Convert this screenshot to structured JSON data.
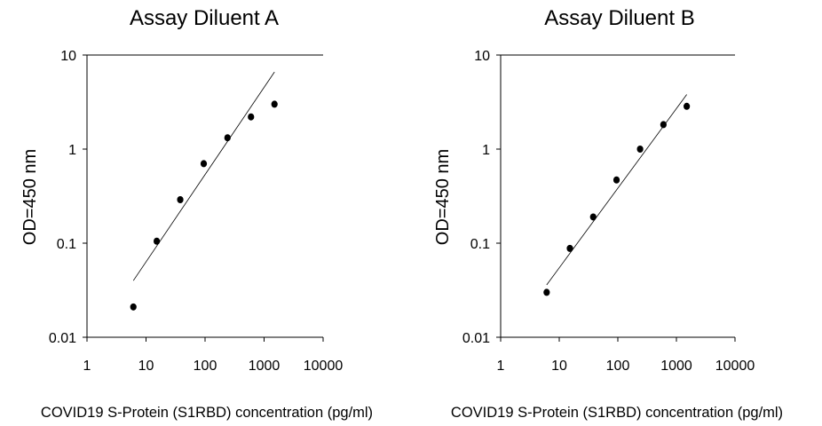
{
  "chart_data": [
    {
      "type": "scatter",
      "title": "Assay Diluent A",
      "xlabel": "COVID19 S-Protein (S1RBD) concentration (pg/ml)",
      "ylabel": "OD=450 nm",
      "xscale": "log",
      "yscale": "log",
      "xlim": [
        1,
        10000
      ],
      "ylim": [
        0.01,
        10
      ],
      "xticks": [
        "1",
        "10",
        "100",
        "1000",
        "10000"
      ],
      "yticks": [
        "0.01",
        "0.1",
        "1",
        "10"
      ],
      "grid": false,
      "series": [
        {
          "name": "data",
          "x": [
            6.1,
            15.2,
            38,
            95,
            240,
            600,
            1500
          ],
          "y": [
            0.021,
            0.105,
            0.29,
            0.7,
            1.32,
            2.2,
            3.0
          ]
        }
      ],
      "fit_line": {
        "x": [
          6.1,
          1500
        ],
        "y": [
          0.04,
          6.6
        ]
      }
    },
    {
      "type": "scatter",
      "title": "Assay Diluent B",
      "xlabel": "COVID19 S-Protein (S1RBD) concentration (pg/ml)",
      "ylabel": "OD=450 nm",
      "xscale": "log",
      "yscale": "log",
      "xlim": [
        1,
        10000
      ],
      "ylim": [
        0.01,
        10
      ],
      "xticks": [
        "1",
        "10",
        "100",
        "1000",
        "10000"
      ],
      "yticks": [
        "0.01",
        "0.1",
        "1",
        "10"
      ],
      "grid": false,
      "series": [
        {
          "name": "data",
          "x": [
            6.1,
            15.2,
            38,
            95,
            240,
            600,
            1500
          ],
          "y": [
            0.03,
            0.088,
            0.19,
            0.47,
            1.0,
            1.82,
            2.85
          ]
        }
      ],
      "fit_line": {
        "x": [
          6.1,
          1500
        ],
        "y": [
          0.036,
          3.8
        ]
      }
    }
  ]
}
